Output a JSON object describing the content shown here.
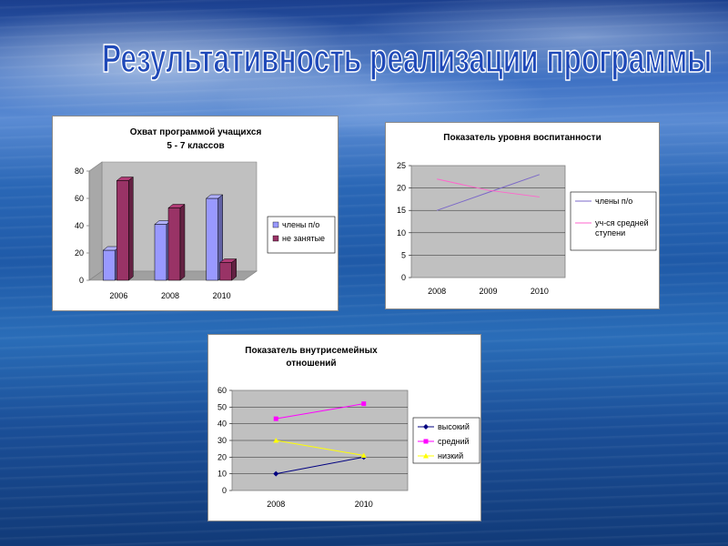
{
  "page": {
    "title": "Результативность реализации программы"
  },
  "colors": {
    "series_purple": "#9999ff",
    "series_maroon": "#993366",
    "line_navy": "#000080",
    "line_magenta": "#ff00ff",
    "line_yellow": "#ffff00",
    "plot_gray": "#c0c0c0"
  },
  "chart_data": [
    {
      "type": "bar",
      "title_lines": [
        "Охват программой учащихся",
        "5 - 7 классов"
      ],
      "categories": [
        "2006",
        "2008",
        "2010"
      ],
      "series": [
        {
          "name": "члены п/о",
          "values": [
            22,
            41,
            60
          ],
          "color": "#9999ff"
        },
        {
          "name": "не занятые",
          "values": [
            73,
            53,
            13
          ],
          "color": "#993366"
        }
      ],
      "ylim": [
        0,
        80
      ],
      "yticks": [
        "0",
        "20",
        "40",
        "60",
        "80"
      ],
      "grid": false,
      "legend": "right",
      "three_d": true
    },
    {
      "type": "line",
      "title_lines": [
        "Показатель уровня воспитанности"
      ],
      "categories": [
        "2008",
        "2009",
        "2010"
      ],
      "series": [
        {
          "name_lines": [
            "члены п/о"
          ],
          "values": [
            15,
            19,
            23
          ],
          "color": "#7b68c8",
          "marker": "none"
        },
        {
          "name_lines": [
            "уч-ся средней",
            "ступени"
          ],
          "values": [
            22,
            19.5,
            18
          ],
          "color": "#ff66cc",
          "marker": "none"
        }
      ],
      "ylim": [
        0,
        25
      ],
      "yticks": [
        "0",
        "5",
        "10",
        "15",
        "20",
        "25"
      ],
      "grid": true,
      "legend": "right"
    },
    {
      "type": "line",
      "title_lines": [
        "Показатель внутрисемейных",
        "отношений"
      ],
      "categories": [
        "2008",
        "2010"
      ],
      "series": [
        {
          "name_lines": [
            "высокий"
          ],
          "values": [
            10,
            20
          ],
          "color": "#000080",
          "marker": "diamond"
        },
        {
          "name_lines": [
            "средний"
          ],
          "values": [
            43,
            52
          ],
          "color": "#ff00ff",
          "marker": "square"
        },
        {
          "name_lines": [
            "низкий"
          ],
          "values": [
            30,
            21
          ],
          "color": "#ffff00",
          "marker": "triangle"
        }
      ],
      "ylim": [
        0,
        60
      ],
      "yticks": [
        "0",
        "10",
        "20",
        "30",
        "40",
        "50",
        "60"
      ],
      "grid": true,
      "legend": "right"
    }
  ]
}
